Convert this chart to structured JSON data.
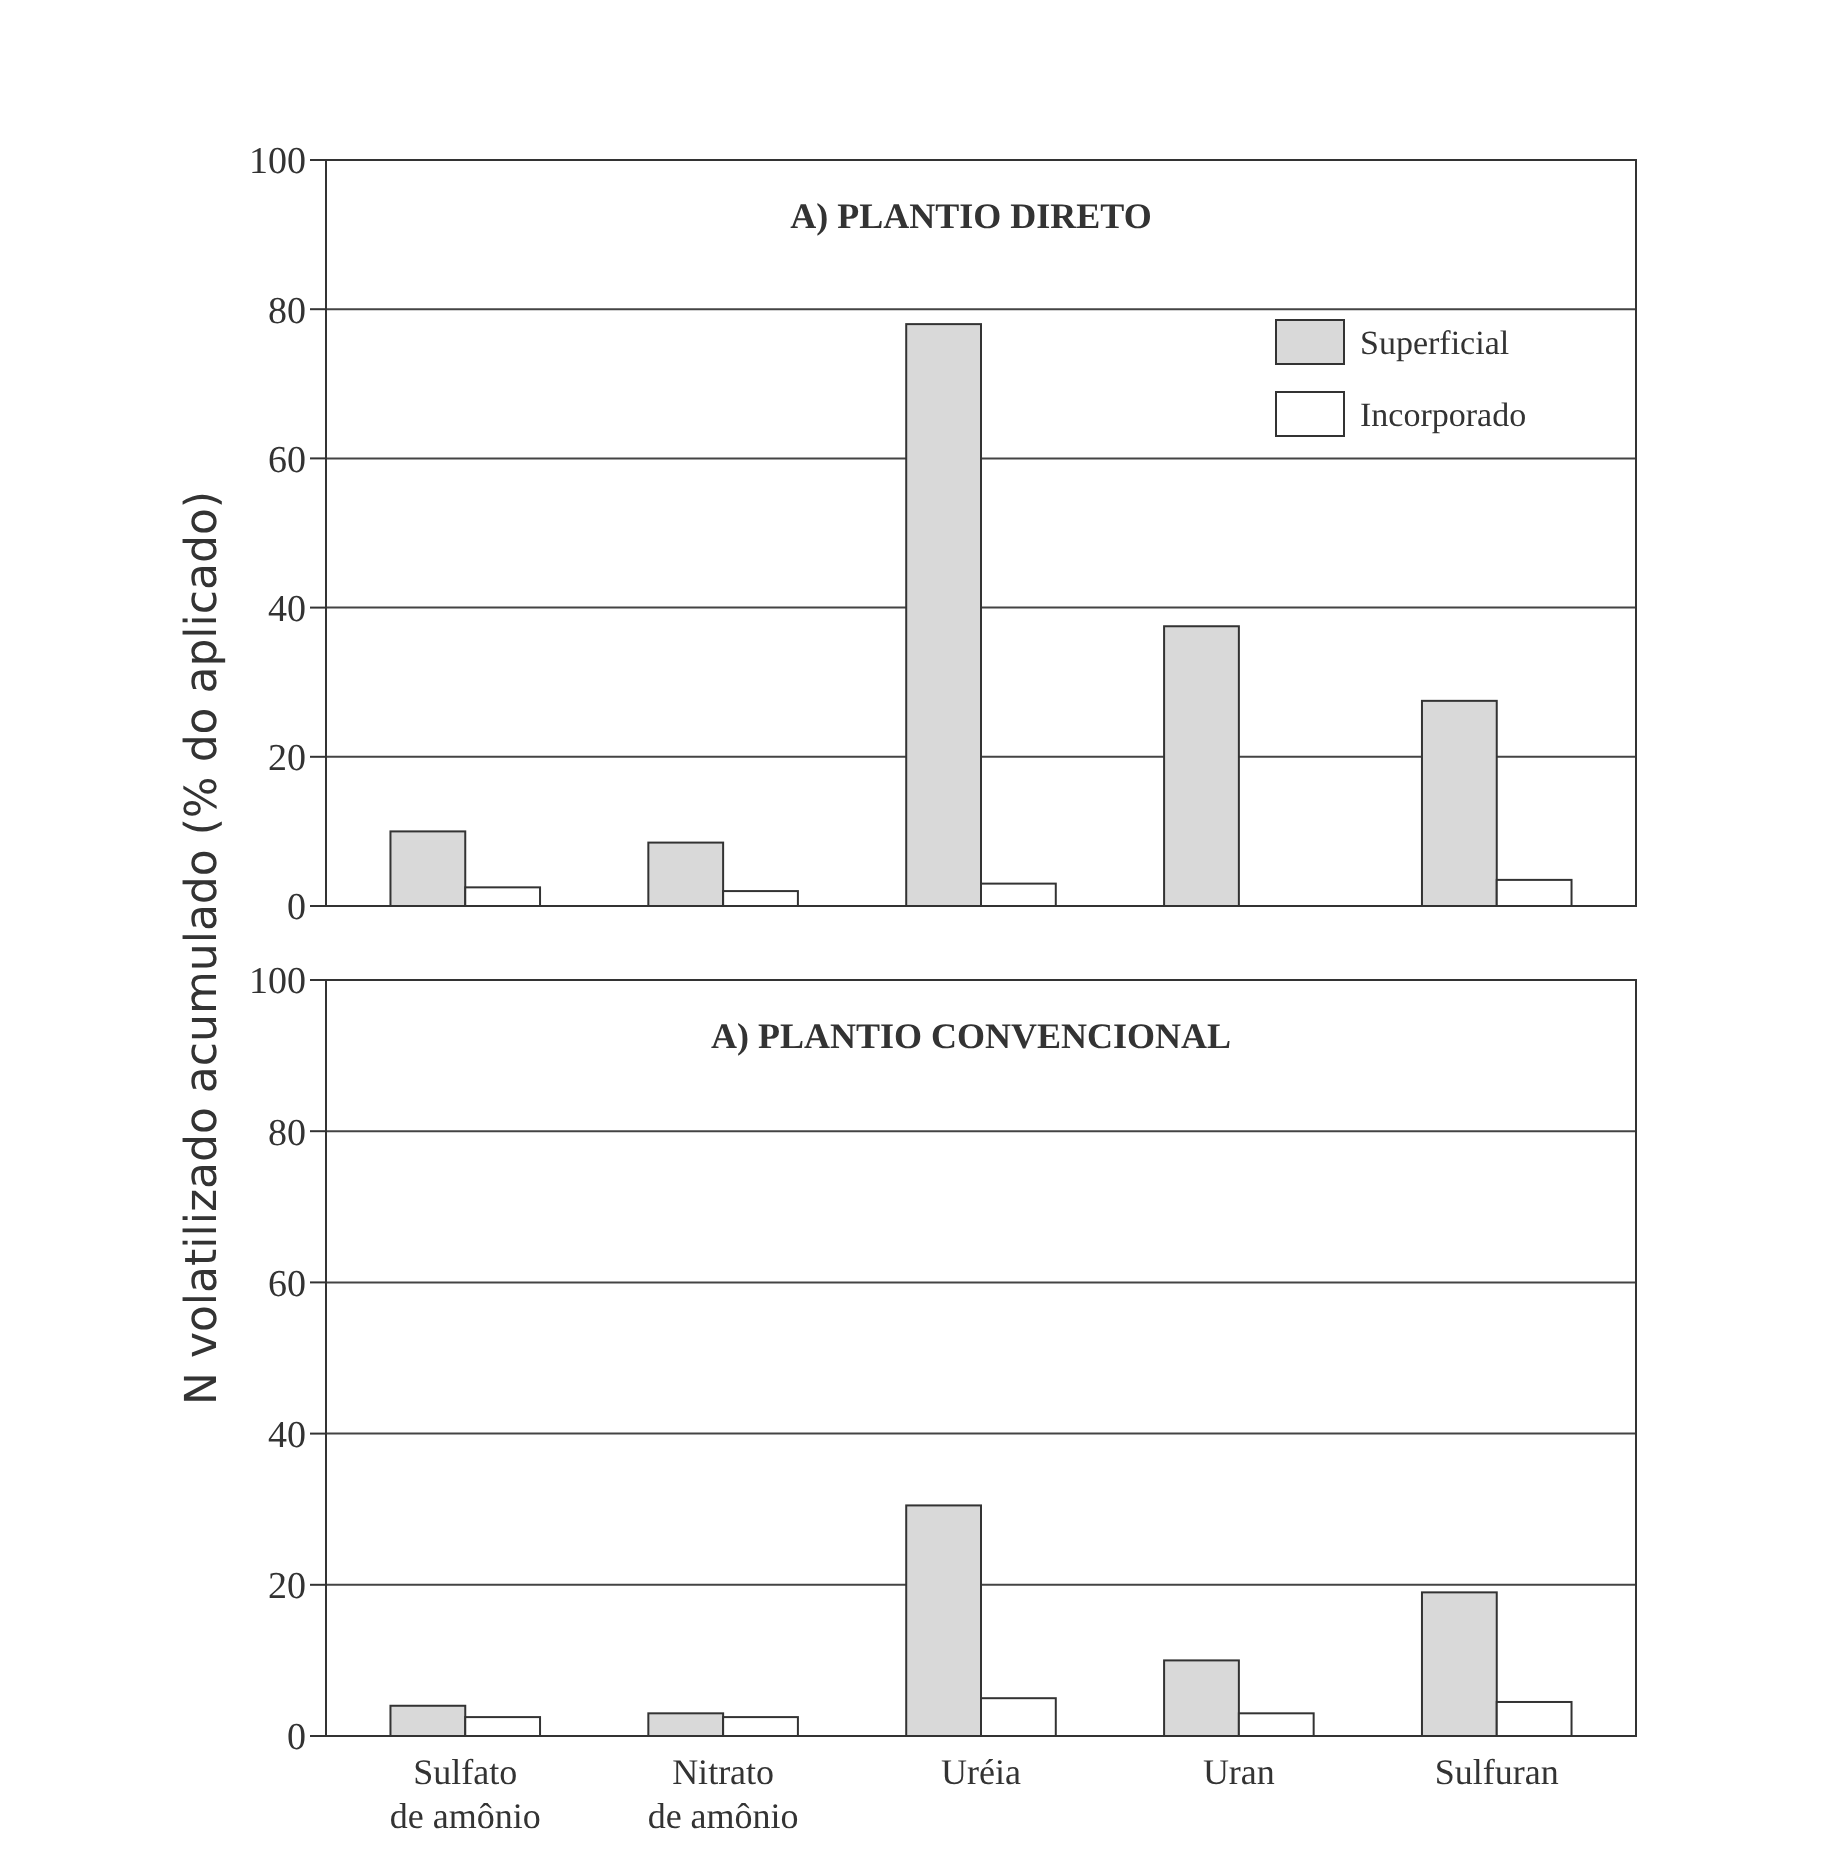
{
  "chart_data": [
    {
      "type": "bar",
      "title": "A) PLANTIO DIRETO",
      "ylabel": "N volatilizado acumulado (% do aplicado)",
      "categories": [
        null,
        null,
        null,
        null,
        null
      ],
      "series": [
        {
          "name": "Superficial",
          "color": "#d9d9d9",
          "values": [
            10,
            8.5,
            78,
            37.5,
            27.5
          ]
        },
        {
          "name": "Incorporado",
          "color": "#ffffff",
          "values": [
            2.5,
            2,
            3,
            0,
            3.5
          ]
        }
      ],
      "ylim": [
        0,
        100
      ],
      "yticks": [
        0,
        20,
        40,
        60,
        80,
        100
      ],
      "grid": "y",
      "legend": "top right",
      "tick_labels": "y"
    },
    {
      "type": "bar",
      "title": "A) PLANTIO CONVENCIONAL",
      "categories": [
        "Sulfato\nde amônio",
        "Nitrato\nde amônio",
        "Uréia",
        "Uran",
        "Sulfuran"
      ],
      "series": [
        {
          "color": "#d9d9d9",
          "values": [
            4,
            3,
            30.5,
            10,
            19
          ]
        },
        {
          "color": "#ffffff",
          "values": [
            2.5,
            2.5,
            5,
            3,
            4.5
          ]
        }
      ],
      "ylim": [
        0,
        100
      ],
      "yticks": [
        0,
        20,
        40,
        60,
        80,
        100
      ],
      "grid": "y",
      "legend": false
    }
  ]
}
